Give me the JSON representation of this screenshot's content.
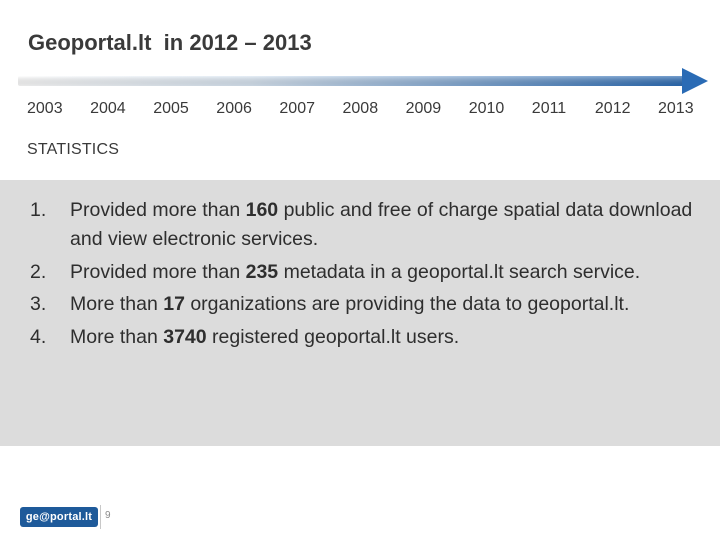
{
  "slide": {
    "title": "Geoportal.lt  in 2012 – 2013",
    "timeline": {
      "years": [
        "2003",
        "2004",
        "2005",
        "2006",
        "2007",
        "2008",
        "2009",
        "2010",
        "2011",
        "2012",
        "2013"
      ],
      "arrow_color_start": "#ffffff",
      "arrow_color_end": "#2a6bb5"
    },
    "section_label": "STATISTICS",
    "stats": [
      {
        "number": "1.",
        "before": "Provided more than ",
        "value": "160",
        "after": " public and free of charge spatial data download and view electronic services."
      },
      {
        "number": "2.",
        "before": "Provided more than ",
        "value": "235",
        "after": " metadata in a geoportal.lt search service."
      },
      {
        "number": "3.",
        "before": "More than ",
        "value": "17",
        "after": " organizations are providing the data to geoportal.lt."
      },
      {
        "number": "4.",
        "before": "More than ",
        "value": "3740",
        "after": " registered geoportal.lt users."
      }
    ],
    "panel_color": "#dcdcdc",
    "footer": {
      "logo_text": "ge@portal.lt",
      "logo_color": "#1e5a9a",
      "page_number": "9"
    }
  }
}
